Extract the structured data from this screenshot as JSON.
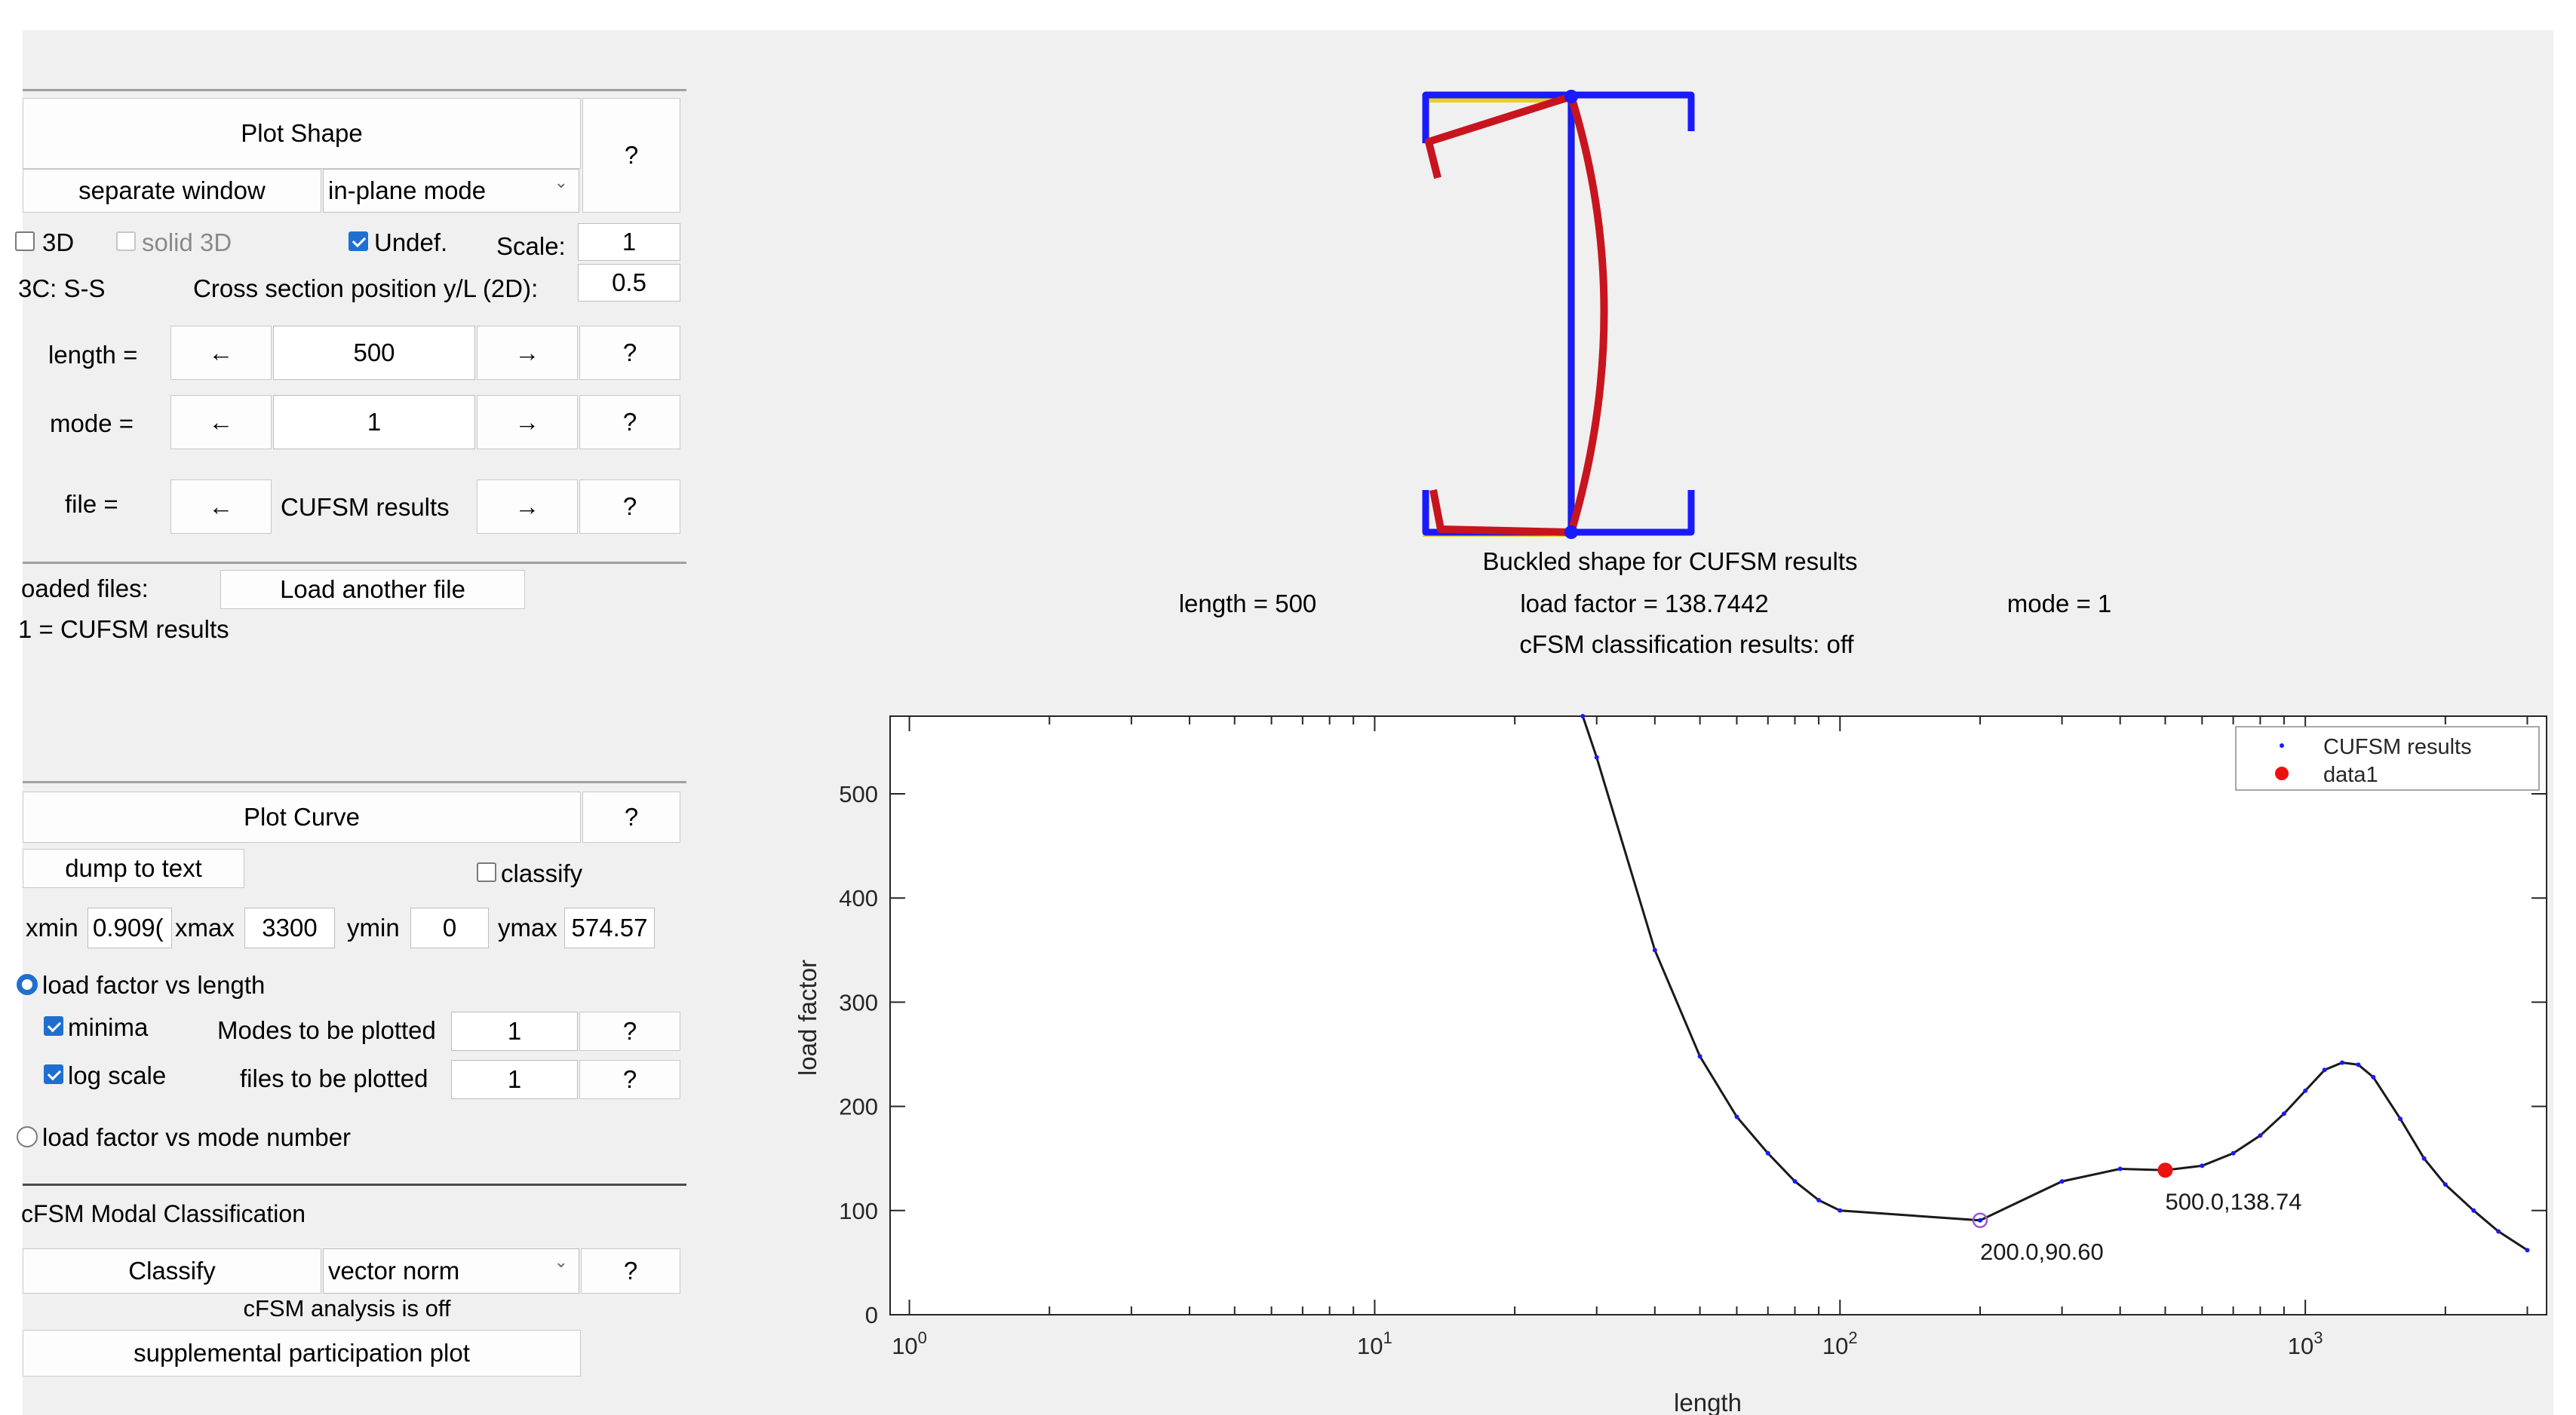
{
  "plot_shape": {
    "header": "Plot Shape",
    "help": "?",
    "separate_window": "separate window",
    "mode_select": "in-plane mode",
    "cb_3d": "3D",
    "cb_solid3d": "solid 3D",
    "cb_undef": "Undef.",
    "scale_label": "Scale:",
    "scale_value": "1",
    "bc_label": "3C: S-S",
    "cross_section_label": "Cross section position y/L (2D):",
    "cross_section_value": "0.5",
    "length_label": "length =",
    "length_value": "500",
    "mode_label": "mode =",
    "mode_value": "1",
    "file_label": "file =",
    "file_value": "CUFSM results",
    "arrow_left": "←",
    "arrow_right": "→"
  },
  "loaded_files": {
    "label": "oaded files:",
    "load_button": "Load another file",
    "item": "1 = CUFSM results"
  },
  "plot_curve": {
    "header": "Plot Curve",
    "help": "?",
    "dump_button": "dump to text",
    "classify_cb": "classify",
    "xmin_label": "xmin",
    "xmin_value": "0.909(",
    "xmax_label": "xmax",
    "xmax_value": "3300",
    "ymin_label": "ymin",
    "ymin_value": "0",
    "ymax_label": "ymax",
    "ymax_value": "574.57",
    "radio_length": "load factor vs length",
    "cb_minima": "minima",
    "modes_label": "Modes to be plotted",
    "modes_value": "1",
    "cb_log": "log scale",
    "files_label": "files to be plotted",
    "files_value": "1",
    "radio_mode": "load factor vs mode number"
  },
  "cfsm": {
    "header": "cFSM Modal Classification",
    "classify_button": "Classify",
    "norm_select": "vector norm",
    "help": "?",
    "status": "cFSM analysis is off",
    "supplemental_button": "supplemental participation plot"
  },
  "shape_plot": {
    "title": "Buckled shape for CUFSM results",
    "length_text": "length = 500",
    "load_factor_text": "load factor = 138.7442",
    "mode_text": "mode = 1",
    "classification_text": "cFSM classification results: off",
    "colors": {
      "outline": "#1a1aff",
      "buckled": "#c8141e",
      "fill": "#e6d21e"
    }
  },
  "chart_data": {
    "type": "line",
    "xlabel": "length",
    "ylabel": "load factor",
    "x_scale": "log",
    "xlim": [
      0.909,
      3300
    ],
    "ylim": [
      0,
      574.57
    ],
    "x_ticks": [
      1,
      10,
      100,
      1000
    ],
    "x_tick_labels": [
      {
        "base": "10",
        "exp": "0"
      },
      {
        "base": "10",
        "exp": "1"
      },
      {
        "base": "10",
        "exp": "2"
      },
      {
        "base": "10",
        "exp": "3"
      }
    ],
    "y_ticks": [
      0,
      100,
      200,
      300,
      400,
      500
    ],
    "y_tick_labels": [
      "0",
      "100",
      "200",
      "300",
      "400",
      "500"
    ],
    "legend": {
      "position": "top-right",
      "entries": [
        "CUFSM results",
        "data1"
      ]
    },
    "series": [
      {
        "name": "CUFSM results",
        "color": "#1a1aff",
        "x": [
          28,
          30,
          40,
          50,
          60,
          70,
          80,
          90,
          100,
          200,
          300,
          400,
          500,
          600,
          700,
          800,
          900,
          1000,
          1100,
          1200,
          1300,
          1400,
          1600,
          1800,
          2000,
          2300,
          2600,
          3000
        ],
        "y": [
          575,
          535,
          350,
          248,
          190,
          155,
          128,
          110,
          100,
          90.6,
          128,
          140,
          138.74,
          143,
          155,
          172,
          193,
          215,
          235,
          242,
          240,
          228,
          188,
          150,
          125,
          100,
          80,
          62
        ]
      },
      {
        "name": "data1",
        "color": "#ee1111",
        "x": [
          500
        ],
        "y": [
          138.74
        ]
      }
    ],
    "annotations": [
      {
        "x": 200,
        "y": 90.6,
        "text": "200.0,90.60"
      },
      {
        "x": 500,
        "y": 138.74,
        "text": "500.0,138.74"
      }
    ]
  }
}
